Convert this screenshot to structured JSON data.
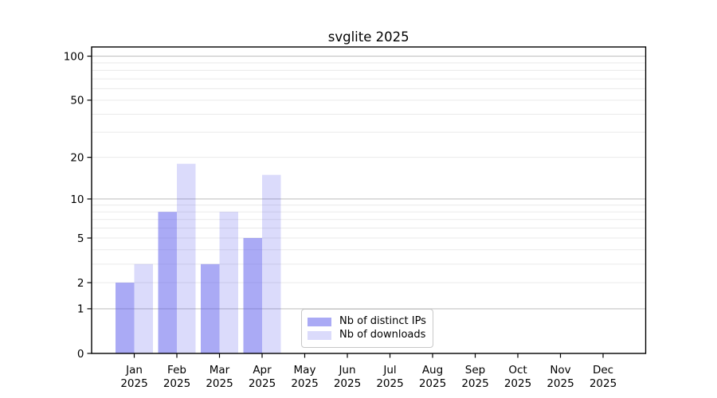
{
  "window": {
    "background": "#ffffff"
  },
  "chart_data": {
    "type": "bar",
    "title": "svglite 2025",
    "months": [
      "Jan",
      "Feb",
      "Mar",
      "Apr",
      "May",
      "Jun",
      "Jul",
      "Aug",
      "Sep",
      "Oct",
      "Nov",
      "Dec"
    ],
    "year": "2025",
    "categories": [
      "Jan 2025",
      "Feb 2025",
      "Mar 2025",
      "Apr 2025",
      "May 2025",
      "Jun 2025",
      "Jul 2025",
      "Aug 2025",
      "Sep 2025",
      "Oct 2025",
      "Nov 2025",
      "Dec 2025"
    ],
    "series": [
      {
        "name": "Nb of distinct IPs",
        "color": "rgba(85,85,235,0.50)",
        "swatch_color": "#aaaaf0",
        "values": [
          2,
          8,
          3,
          5,
          0,
          0,
          0,
          0,
          0,
          0,
          0,
          0
        ]
      },
      {
        "name": "Nb of downloads",
        "color": "rgba(85,85,235,0.21)",
        "swatch_color": "#dcdcf8",
        "values": [
          3,
          18,
          8,
          15,
          0,
          0,
          0,
          0,
          0,
          0,
          0,
          0
        ]
      }
    ],
    "y_axis": {
      "scale": "log1p",
      "ticks": [
        0,
        1,
        2,
        5,
        10,
        20,
        50,
        100
      ],
      "major_gridlines": [
        1,
        10,
        100
      ],
      "minor_gridlines": [
        2,
        3,
        4,
        5,
        6,
        7,
        8,
        9,
        20,
        30,
        40,
        50,
        60,
        70,
        80,
        90
      ],
      "max": 115.5
    },
    "xlabel": "",
    "ylabel": "",
    "grid": true,
    "legend_position": "lower center",
    "colors": {
      "major_grid": "#c3c3c3",
      "minor_grid": "#eaeaea",
      "axis": "#000000",
      "background": "#ffffff"
    }
  }
}
